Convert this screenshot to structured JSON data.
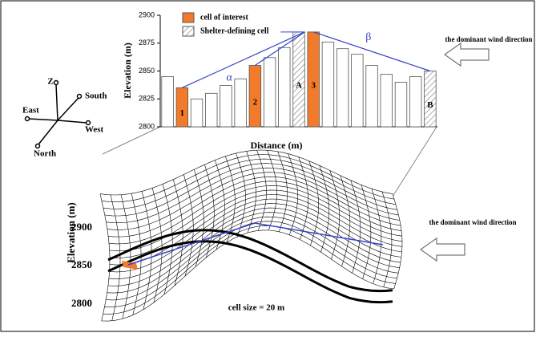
{
  "chart_data": {
    "type": "bar",
    "ylabel": "Elevation (m)",
    "xlabel": "Distance (m)",
    "ylim": [
      2800,
      2900
    ],
    "yticks": [
      2800,
      2825,
      2850,
      2875,
      2900
    ],
    "values": [
      2845,
      2835,
      2825,
      2830,
      2837,
      2843,
      2855,
      2862,
      2871,
      2885,
      2885,
      2876,
      2870,
      2865,
      2855,
      2847,
      2840,
      2845,
      2850
    ],
    "bar_fill": [
      "#ffffff",
      "#f27a2b",
      "#ffffff",
      "#ffffff",
      "#ffffff",
      "#ffffff",
      "#f27a2b",
      "#ffffff",
      "#ffffff",
      "hatch",
      "#f27a2b",
      "#ffffff",
      "#ffffff",
      "#ffffff",
      "#ffffff",
      "#ffffff",
      "#ffffff",
      "#ffffff",
      "hatch"
    ],
    "bar_labels": [
      null,
      "1",
      null,
      null,
      null,
      null,
      "2",
      null,
      null,
      "A",
      "3",
      null,
      null,
      null,
      null,
      null,
      null,
      null,
      "B"
    ],
    "legend": [
      {
        "name": "cell of interest",
        "color": "#f27a2b"
      },
      {
        "name": "Shelter-defining cell",
        "color": "hatch"
      }
    ],
    "angles": [
      "α",
      "β"
    ],
    "wind_label": "the dominant wind direction"
  },
  "compass": {
    "up": "Z",
    "south": "South",
    "east": "East",
    "west": "West",
    "north": "North"
  },
  "mesh": {
    "ylabel": "Elevation (m)",
    "yticks": [
      "2900",
      "2850",
      "2800"
    ],
    "note": "cell size = 20 m",
    "wind_label": "the dominant wind direction"
  }
}
